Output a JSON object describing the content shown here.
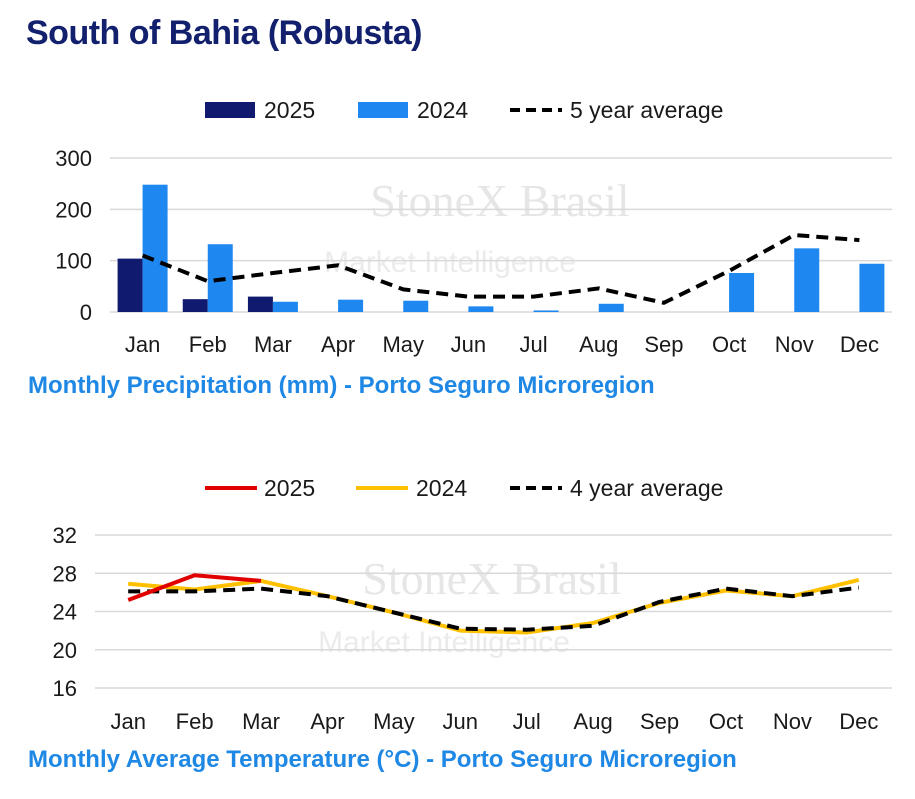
{
  "title": "South of Bahia (Robusta)",
  "watermark": {
    "brand": "StoneX Brasil",
    "tagline": "Market Intelligence"
  },
  "colors": {
    "bar_2025": "#101a6e",
    "bar_2024": "#1e88f0",
    "line_2025": "#e00000",
    "line_2024": "#ffc000",
    "average": "#000000",
    "subtitle": "#1f88e5",
    "grid": "#d9d9d9"
  },
  "chart_data": [
    {
      "type": "bar",
      "title": "Monthly Precipitation (mm) - Porto Seguro Microregion",
      "categories": [
        "Jan",
        "Feb",
        "Mar",
        "Apr",
        "May",
        "Jun",
        "Jul",
        "Aug",
        "Sep",
        "Oct",
        "Nov",
        "Dec"
      ],
      "series": [
        {
          "name": "2025",
          "kind": "bar",
          "values": [
            104,
            25,
            30,
            null,
            null,
            null,
            null,
            null,
            null,
            null,
            null,
            null
          ]
        },
        {
          "name": "2024",
          "kind": "bar",
          "values": [
            248,
            132,
            20,
            24,
            22,
            11,
            3,
            16,
            0,
            76,
            124,
            94
          ]
        },
        {
          "name": "5 year average",
          "kind": "line",
          "style": "dashed",
          "values": [
            110,
            60,
            76,
            91,
            44,
            30,
            30,
            46,
            18,
            80,
            150,
            140
          ]
        }
      ],
      "ylim": [
        0,
        300
      ],
      "yticks": [
        0,
        100,
        200,
        300
      ],
      "grid": true,
      "legend_position": "top"
    },
    {
      "type": "line",
      "title": "Monthly Average Temperature (°C) - Porto Seguro Microregion",
      "categories": [
        "Jan",
        "Feb",
        "Mar",
        "Apr",
        "May",
        "Jun",
        "Jul",
        "Aug",
        "Sep",
        "Oct",
        "Nov",
        "Dec"
      ],
      "series": [
        {
          "name": "2025",
          "values": [
            25.2,
            27.8,
            27.2,
            null,
            null,
            null,
            null,
            null,
            null,
            null,
            null,
            null
          ]
        },
        {
          "name": "2024",
          "values": [
            26.9,
            26.3,
            27.2,
            25.6,
            23.9,
            22.0,
            21.8,
            22.8,
            24.9,
            26.2,
            25.6,
            27.3
          ]
        },
        {
          "name": "4 year average",
          "style": "dashed",
          "values": [
            26.1,
            26.1,
            26.4,
            25.6,
            23.9,
            22.2,
            22.1,
            22.5,
            25.0,
            26.4,
            25.6,
            26.5
          ]
        }
      ],
      "ylim": [
        16,
        32
      ],
      "yticks": [
        16,
        20,
        24,
        28,
        32
      ],
      "grid": true,
      "legend_position": "top"
    }
  ]
}
